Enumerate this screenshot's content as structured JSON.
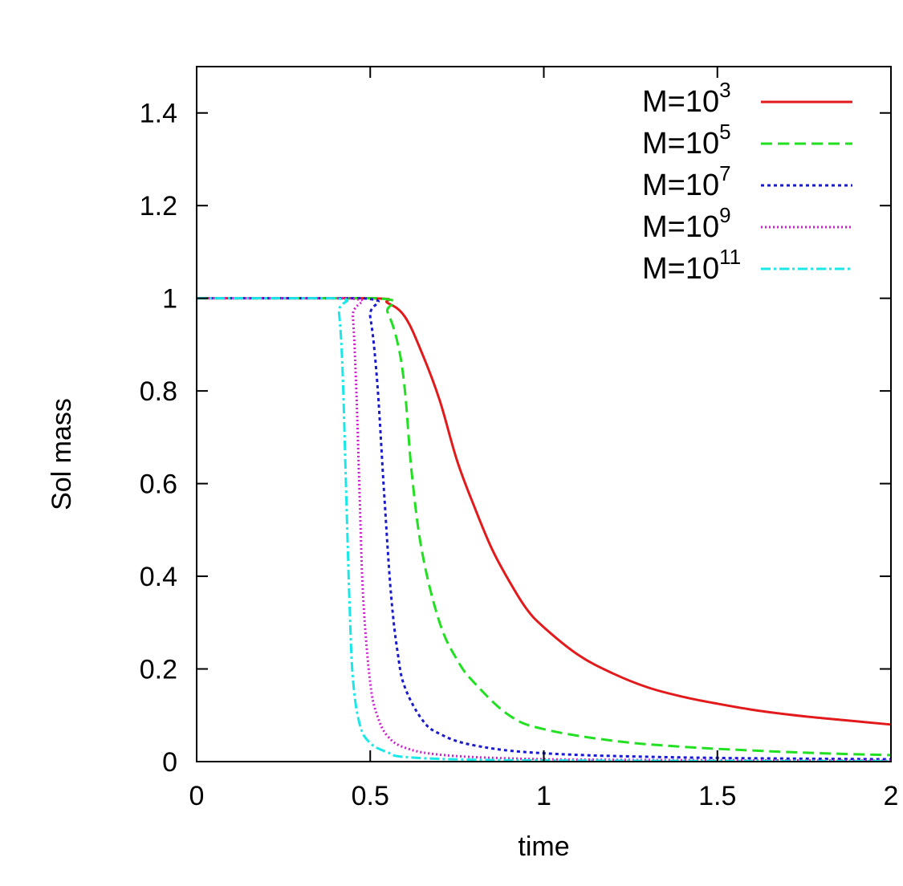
{
  "chart_data": {
    "type": "line",
    "title": "",
    "xlabel": "time",
    "ylabel": "Sol mass",
    "xlim": [
      0,
      2
    ],
    "ylim": [
      0,
      1.5
    ],
    "xticks": [
      0,
      0.5,
      1,
      1.5,
      2
    ],
    "xtick_labels": [
      "0",
      "0.5",
      "1",
      "1.5",
      "2"
    ],
    "yticks": [
      0,
      0.2,
      0.4,
      0.6,
      0.8,
      1,
      1.2,
      1.4
    ],
    "ytick_labels": [
      "0",
      "0.2",
      "0.4",
      "0.6",
      "0.8",
      "1",
      "1.2",
      "1.4"
    ],
    "grid": false,
    "legend_position": "top-right",
    "series": [
      {
        "name": "M=10^3",
        "base": "M=10",
        "exp": "3",
        "color": "#e31a1c",
        "dash": "",
        "x": [
          0,
          0.5,
          0.55,
          0.6,
          0.65,
          0.7,
          0.75,
          0.8,
          0.85,
          0.9,
          0.95,
          1.0,
          1.1,
          1.2,
          1.3,
          1.4,
          1.5,
          1.6,
          1.7,
          1.8,
          1.9,
          2.0
        ],
        "y": [
          1,
          1,
          0.99,
          0.96,
          0.88,
          0.78,
          0.65,
          0.55,
          0.46,
          0.39,
          0.33,
          0.29,
          0.23,
          0.19,
          0.16,
          0.14,
          0.125,
          0.112,
          0.102,
          0.094,
          0.087,
          0.08
        ]
      },
      {
        "name": "M=10^5",
        "base": "M=10",
        "exp": "5",
        "color": "#21e021",
        "dash": "14,7",
        "x": [
          0,
          0.52,
          0.55,
          0.58,
          0.6,
          0.62,
          0.65,
          0.7,
          0.75,
          0.8,
          0.9,
          1.0,
          1.2,
          1.4,
          1.6,
          1.8,
          2.0
        ],
        "y": [
          1,
          1,
          0.97,
          0.9,
          0.8,
          0.62,
          0.45,
          0.3,
          0.22,
          0.17,
          0.1,
          0.07,
          0.045,
          0.032,
          0.024,
          0.018,
          0.014
        ]
      },
      {
        "name": "M=10^7",
        "base": "M=10",
        "exp": "7",
        "color": "#1a1acd",
        "dash": "4,4",
        "x": [
          0,
          0.48,
          0.5,
          0.52,
          0.54,
          0.56,
          0.58,
          0.6,
          0.65,
          0.7,
          0.8,
          1.0,
          1.4,
          2.0
        ],
        "y": [
          1,
          1,
          0.96,
          0.82,
          0.58,
          0.36,
          0.23,
          0.16,
          0.09,
          0.06,
          0.035,
          0.018,
          0.009,
          0.005
        ]
      },
      {
        "name": "M=10^9",
        "base": "M=10",
        "exp": "9",
        "color": "#d21ed2",
        "dash": "2,3",
        "x": [
          0,
          0.44,
          0.45,
          0.46,
          0.47,
          0.48,
          0.5,
          0.52,
          0.55,
          0.6,
          0.7,
          0.9,
          1.2,
          2.0
        ],
        "y": [
          1,
          1,
          0.96,
          0.8,
          0.56,
          0.35,
          0.17,
          0.1,
          0.055,
          0.03,
          0.015,
          0.007,
          0.004,
          0.002
        ]
      },
      {
        "name": "M=10^11",
        "base": "M=10",
        "exp": "11",
        "color": "#1ae8e8",
        "dash": "12,4,3,4",
        "x": [
          0,
          0.4,
          0.41,
          0.42,
          0.43,
          0.44,
          0.45,
          0.47,
          0.5,
          0.55,
          0.6,
          0.8,
          1.2,
          2.0
        ],
        "y": [
          1,
          1,
          0.97,
          0.85,
          0.6,
          0.35,
          0.18,
          0.08,
          0.04,
          0.02,
          0.01,
          0.004,
          0.002,
          0.001
        ]
      }
    ]
  }
}
